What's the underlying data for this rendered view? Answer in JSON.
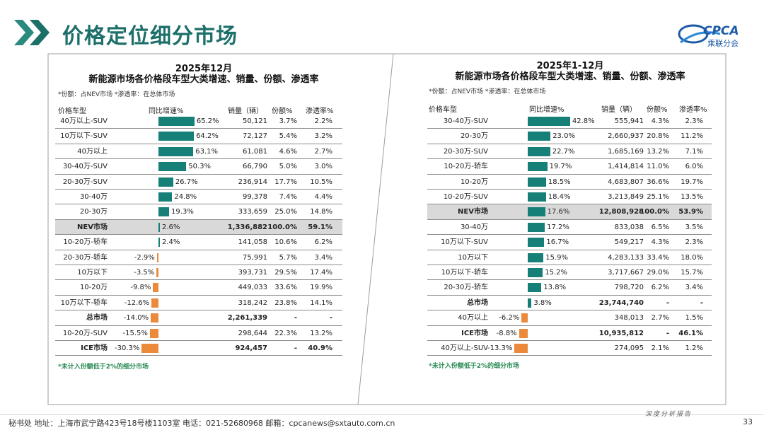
{
  "header": {
    "title": "价格定位细分市场",
    "logo_text": "CPCA",
    "logo_sub": "乘联分会",
    "brand_color": "#1d6f6a"
  },
  "colors": {
    "positive": "#157f78",
    "negative": "#ec8a3c",
    "highlight": "#d9d9d9"
  },
  "footer": {
    "contact": "秘书处   地址：上海市武宁路423号18号楼1103室  电话：021-52680968   邮箱：cpcanews@sxtauto.com.cn",
    "tag": "深度分析报告",
    "page": "33"
  },
  "chart_data": [
    {
      "type": "table",
      "title": "2025年12月",
      "subtitle": "新能源市场各价格段车型大类增速、销量、份额、渗透率",
      "note": "*份额：占NEV市场   *渗透率：在总体市场",
      "footnote": "*未计入份额低于2%的细分市场",
      "columns": [
        "价格车型",
        "同比增速%",
        "销量（辆）",
        "份额%",
        "渗透率%"
      ],
      "rows": [
        {
          "cat": "40万以上-SUV",
          "growth": 65.2,
          "growth_label": "65.2%",
          "sales": "50,121",
          "share": "3.7%",
          "pen": "2.2%"
        },
        {
          "cat": "10万以下-SUV",
          "growth": 64.2,
          "growth_label": "64.2%",
          "sales": "72,127",
          "share": "5.4%",
          "pen": "3.2%"
        },
        {
          "cat": "40万以上",
          "growth": 63.1,
          "growth_label": "63.1%",
          "sales": "61,081",
          "share": "4.6%",
          "pen": "2.7%"
        },
        {
          "cat": "30-40万-SUV",
          "growth": 50.3,
          "growth_label": "50.3%",
          "sales": "66,790",
          "share": "5.0%",
          "pen": "3.0%"
        },
        {
          "cat": "20-30万-SUV",
          "growth": 26.7,
          "growth_label": "26.7%",
          "sales": "236,914",
          "share": "17.7%",
          "pen": "10.5%"
        },
        {
          "cat": "30-40万",
          "growth": 24.8,
          "growth_label": "24.8%",
          "sales": "99,378",
          "share": "7.4%",
          "pen": "4.4%"
        },
        {
          "cat": "20-30万",
          "growth": 19.3,
          "growth_label": "19.3%",
          "sales": "333,659",
          "share": "25.0%",
          "pen": "14.8%"
        },
        {
          "cat": "NEV市场",
          "growth": 2.6,
          "growth_label": "2.6%",
          "sales": "1,336,882",
          "share": "100.0%",
          "pen": "59.1%",
          "bold": true,
          "highlight": true
        },
        {
          "cat": "10-20万-轿车",
          "growth": 2.4,
          "growth_label": "2.4%",
          "sales": "141,058",
          "share": "10.6%",
          "pen": "6.2%"
        },
        {
          "cat": "20-30万-轿车",
          "growth": -2.9,
          "growth_label": "-2.9%",
          "sales": "75,991",
          "share": "5.7%",
          "pen": "3.4%"
        },
        {
          "cat": "10万以下",
          "growth": -3.5,
          "growth_label": "-3.5%",
          "sales": "393,731",
          "share": "29.5%",
          "pen": "17.4%"
        },
        {
          "cat": "10-20万",
          "growth": -9.8,
          "growth_label": "-9.8%",
          "sales": "449,033",
          "share": "33.6%",
          "pen": "19.9%"
        },
        {
          "cat": "10万以下-轿车",
          "growth": -12.6,
          "growth_label": "-12.6%",
          "sales": "318,242",
          "share": "23.8%",
          "pen": "14.1%"
        },
        {
          "cat": "总市场",
          "growth": -14.0,
          "growth_label": "-14.0%",
          "sales": "2,261,339",
          "share": "-",
          "pen": "-",
          "bold": true
        },
        {
          "cat": "10-20万-SUV",
          "growth": -15.5,
          "growth_label": "-15.5%",
          "sales": "298,644",
          "share": "22.3%",
          "pen": "13.2%"
        },
        {
          "cat": "ICE市场",
          "growth": -30.3,
          "growth_label": "-30.3%",
          "sales": "924,457",
          "share": "-",
          "pen": "40.9%",
          "bold": true
        }
      ]
    },
    {
      "type": "table",
      "title": "2025年1-12月",
      "subtitle": "新能源市场各价格段车型大类增速、销量、份额、渗透率",
      "note": "*份额：占NEV市场   *渗透率：在总体市场",
      "footnote": "*未计入份额低于2%的细分市场",
      "columns": [
        "价格车型",
        "同比增速%",
        "销量（辆）",
        "份额%",
        "渗透率%"
      ],
      "rows": [
        {
          "cat": "30-40万-SUV",
          "growth": 42.8,
          "growth_label": "42.8%",
          "sales": "555,941",
          "share": "4.3%",
          "pen": "2.3%"
        },
        {
          "cat": "20-30万",
          "growth": 23.0,
          "growth_label": "23.0%",
          "sales": "2,660,937",
          "share": "20.8%",
          "pen": "11.2%"
        },
        {
          "cat": "20-30万-SUV",
          "growth": 22.7,
          "growth_label": "22.7%",
          "sales": "1,685,169",
          "share": "13.2%",
          "pen": "7.1%"
        },
        {
          "cat": "10-20万-轿车",
          "growth": 19.7,
          "growth_label": "19.7%",
          "sales": "1,414,814",
          "share": "11.0%",
          "pen": "6.0%"
        },
        {
          "cat": "10-20万",
          "growth": 18.5,
          "growth_label": "18.5%",
          "sales": "4,683,807",
          "share": "36.6%",
          "pen": "19.7%"
        },
        {
          "cat": "10-20万-SUV",
          "growth": 18.4,
          "growth_label": "18.4%",
          "sales": "3,213,849",
          "share": "25.1%",
          "pen": "13.5%"
        },
        {
          "cat": "NEV市场",
          "growth": 17.6,
          "growth_label": "17.6%",
          "sales": "12,808,928",
          "share": "100.0%",
          "pen": "53.9%",
          "bold": true,
          "highlight": true
        },
        {
          "cat": "30-40万",
          "growth": 17.2,
          "growth_label": "17.2%",
          "sales": "833,038",
          "share": "6.5%",
          "pen": "3.5%"
        },
        {
          "cat": "10万以下-SUV",
          "growth": 16.7,
          "growth_label": "16.7%",
          "sales": "549,217",
          "share": "4.3%",
          "pen": "2.3%"
        },
        {
          "cat": "10万以下",
          "growth": 15.9,
          "growth_label": "15.9%",
          "sales": "4,283,133",
          "share": "33.4%",
          "pen": "18.0%"
        },
        {
          "cat": "10万以下-轿车",
          "growth": 15.2,
          "growth_label": "15.2%",
          "sales": "3,717,667",
          "share": "29.0%",
          "pen": "15.7%"
        },
        {
          "cat": "20-30万-轿车",
          "growth": 13.8,
          "growth_label": "13.8%",
          "sales": "798,720",
          "share": "6.2%",
          "pen": "3.4%"
        },
        {
          "cat": "总市场",
          "growth": 3.8,
          "growth_label": "3.8%",
          "sales": "23,744,740",
          "share": "-",
          "pen": "-",
          "bold": true
        },
        {
          "cat": "40万以上",
          "growth": -6.2,
          "growth_label": "-6.2%",
          "sales": "348,013",
          "share": "2.7%",
          "pen": "1.5%"
        },
        {
          "cat": "ICE市场",
          "growth": -8.8,
          "growth_label": "-8.8%",
          "sales": "10,935,812",
          "share": "-",
          "pen": "46.1%",
          "bold": true
        },
        {
          "cat": "40万以上-SUV",
          "growth": -13.3,
          "growth_label": "-13.3%",
          "sales": "274,095",
          "share": "2.1%",
          "pen": "1.2%"
        }
      ]
    }
  ]
}
